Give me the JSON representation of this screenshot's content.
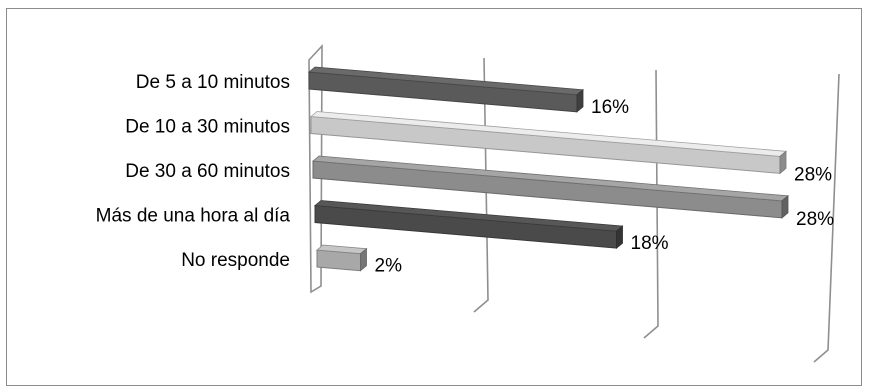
{
  "chart_data": {
    "type": "bar",
    "orientation": "horizontal",
    "three_d": true,
    "categories": [
      "De 5 a 10 minutos",
      "De 10 a 30 minutos",
      "De 30 a 60 minutos",
      "Más de una hora al día",
      "No responde"
    ],
    "values": [
      16,
      28,
      28,
      18,
      2
    ],
    "data_labels": [
      "16%",
      "28%",
      "28%",
      "18%",
      "2%"
    ],
    "bar_colors": [
      "#5a5a5a",
      "#c8c8c8",
      "#8c8c8c",
      "#4a4a4a",
      "#a8a8a8"
    ],
    "xlim": [
      0,
      30
    ],
    "xlabel": "",
    "ylabel": "",
    "grid": true,
    "legend": "none"
  }
}
